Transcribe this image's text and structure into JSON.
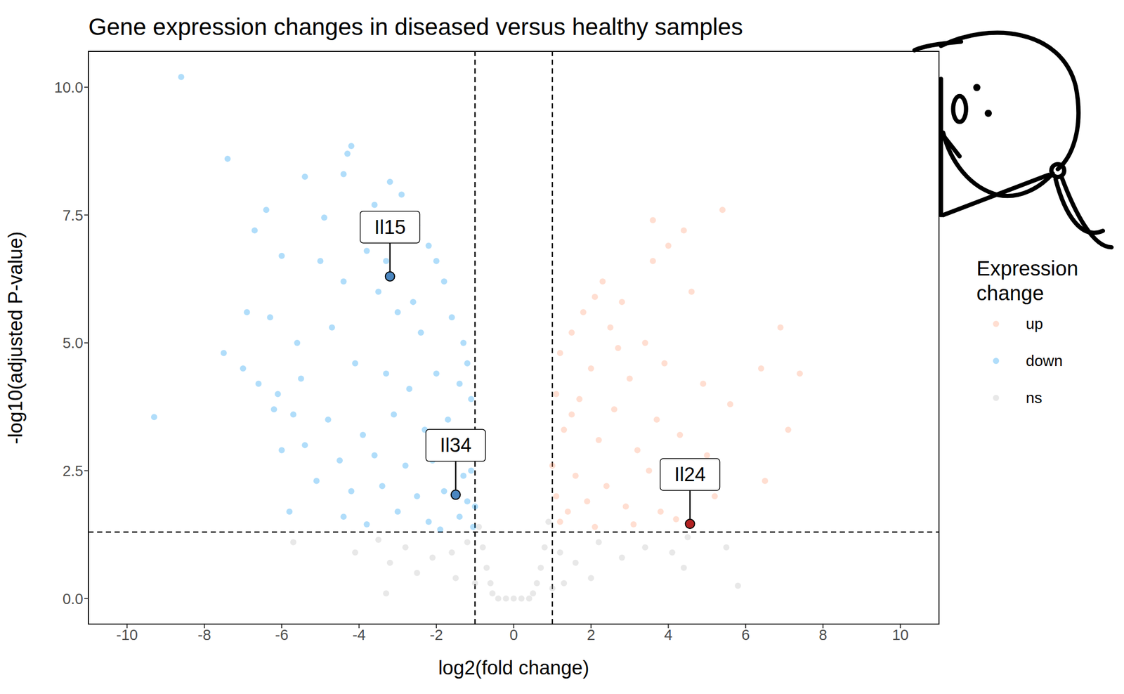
{
  "chart_data": {
    "type": "scatter",
    "title": "Gene expression changes in diseased versus healthy samples",
    "x_label": "log2(fold change)",
    "y_label": "-log10(adjusted P-value)",
    "legend_title": "Expression change",
    "xlim": [
      -11,
      11
    ],
    "ylim": [
      -0.5,
      10.7
    ],
    "xticks": [
      -10,
      -8,
      -6,
      -4,
      -2,
      0,
      2,
      4,
      6,
      8,
      10
    ],
    "yticks": [
      {
        "value": 0,
        "label": "0.0"
      },
      2.5,
      {
        "value": 5,
        "label": "5.0"
      },
      7.5,
      {
        "value": 10,
        "label": "10.0"
      }
    ],
    "reference_lines": {
      "x": [
        -1,
        1
      ],
      "y": [
        1.3
      ]
    },
    "series": [
      {
        "name": "up",
        "color": "#FFA07A",
        "x": [
          5.4,
          4.4,
          3.6,
          2.3,
          3.6,
          4.0,
          2.1,
          1.8,
          2.8,
          4.6,
          1.5,
          2.5,
          3.4,
          6.9,
          6.4,
          7.4,
          1.2,
          2.0,
          3.0,
          3.9,
          4.9,
          1.1,
          1.7,
          2.6,
          3.7,
          5.6,
          4.3,
          1.3,
          2.2,
          3.2,
          5.0,
          7.1,
          6.5,
          1.0,
          1.6,
          2.4,
          3.5,
          4.5,
          1.1,
          1.9,
          2.9,
          3.8,
          5.2,
          1.2,
          2.1,
          3.1,
          4.2,
          1.4,
          1.5,
          2.7
        ],
        "values": [
          7.6,
          7.2,
          7.4,
          6.2,
          6.6,
          6.9,
          5.9,
          5.6,
          5.8,
          6.0,
          5.2,
          5.3,
          5.0,
          5.3,
          4.5,
          4.4,
          4.8,
          4.5,
          4.3,
          4.6,
          4.2,
          4.0,
          3.9,
          3.7,
          3.5,
          3.8,
          3.2,
          3.3,
          3.1,
          2.9,
          2.8,
          3.3,
          2.3,
          2.6,
          2.4,
          2.2,
          2.5,
          2.6,
          2.0,
          1.9,
          1.8,
          1.7,
          2.0,
          1.5,
          1.4,
          1.45,
          1.55,
          1.7,
          3.6,
          4.9
        ]
      },
      {
        "name": "down",
        "color": "#1E9FF2",
        "x": [
          -8.6,
          -4.2,
          -4.3,
          -7.4,
          -5.4,
          -4.4,
          -3.2,
          -2.9,
          -6.4,
          -4.9,
          -3.6,
          -2.5,
          -6.7,
          -6.0,
          -5.0,
          -3.8,
          -2.2,
          -2.0,
          -4.4,
          -3.5,
          -1.8,
          -6.9,
          -6.3,
          -4.7,
          -3.0,
          -2.4,
          -1.6,
          -1.3,
          -5.6,
          -7.5,
          -7.0,
          -6.6,
          -6.1,
          -5.5,
          -4.1,
          -3.3,
          -2.7,
          -2.0,
          -1.4,
          -1.1,
          -9.3,
          -6.2,
          -5.7,
          -4.8,
          -3.9,
          -3.1,
          -2.3,
          -1.7,
          -1.2,
          -5.4,
          -6.0,
          -4.5,
          -3.6,
          -2.8,
          -2.1,
          -1.5,
          -1.1,
          -5.1,
          -4.2,
          -3.4,
          -2.5,
          -1.8,
          -1.2,
          -5.8,
          -4.4,
          -3.0,
          -2.2,
          -1.4,
          -1.05,
          -3.8,
          -1.9,
          -1.0,
          -1.3,
          -1.6,
          -1.2,
          -2.6,
          -3.3,
          -2.8
        ],
        "values": [
          10.2,
          8.85,
          8.7,
          8.6,
          8.25,
          8.3,
          8.15,
          7.9,
          7.6,
          7.45,
          7.7,
          7.3,
          7.2,
          6.7,
          6.6,
          6.8,
          6.9,
          6.6,
          6.2,
          6.0,
          6.2,
          5.6,
          5.5,
          5.3,
          5.6,
          5.2,
          5.5,
          5.0,
          5.0,
          4.8,
          4.5,
          4.2,
          4.0,
          4.3,
          4.6,
          4.4,
          4.1,
          4.4,
          4.2,
          3.9,
          3.55,
          3.7,
          3.6,
          3.5,
          3.2,
          3.6,
          3.3,
          3.5,
          3.1,
          3.0,
          2.9,
          2.7,
          2.8,
          2.6,
          2.7,
          2.8,
          2.5,
          2.3,
          2.1,
          2.2,
          2.0,
          2.1,
          1.9,
          1.7,
          1.6,
          1.7,
          1.5,
          1.6,
          1.4,
          1.45,
          1.35,
          1.8,
          2.4,
          3.0,
          4.6,
          5.8,
          6.6,
          7.1
        ]
      },
      {
        "name": "ns",
        "color": "#BEBEBE",
        "x": [
          -5.7,
          -4.1,
          -3.5,
          -2.8,
          -2.1,
          -1.6,
          -1.2,
          -0.9,
          -0.8,
          -0.7,
          -0.6,
          -0.55,
          -2.5,
          -1.5,
          -3.2,
          -3.3,
          0.5,
          0.6,
          0.7,
          0.8,
          0.9,
          1.2,
          1.6,
          2.2,
          2.8,
          3.4,
          4.1,
          4.5,
          4.4,
          5.5,
          5.8,
          2.0,
          1.3,
          -0.4,
          -0.2,
          0,
          0.2,
          0.4,
          -1.0,
          1.0
        ],
        "values": [
          1.1,
          0.9,
          1.15,
          1.0,
          0.8,
          0.9,
          1.1,
          1.4,
          1.0,
          0.6,
          0.3,
          0.1,
          0.5,
          0.4,
          0.7,
          0.1,
          0.1,
          0.3,
          0.6,
          1.0,
          1.5,
          0.9,
          0.7,
          1.1,
          0.8,
          1.0,
          0.9,
          1.2,
          0.6,
          1.0,
          0.25,
          0.4,
          0.3,
          0,
          0,
          0,
          0,
          0,
          0.3,
          0.2
        ]
      }
    ],
    "annotations": [
      {
        "label": "Il15",
        "x": -3.2,
        "y": 6.3,
        "color": "#4A86C0"
      },
      {
        "label": "Il34",
        "x": -1.5,
        "y": 2.03,
        "color": "#4A86C0"
      },
      {
        "label": "Il24",
        "x": 4.56,
        "y": 1.46,
        "color": "#B22222"
      }
    ]
  }
}
